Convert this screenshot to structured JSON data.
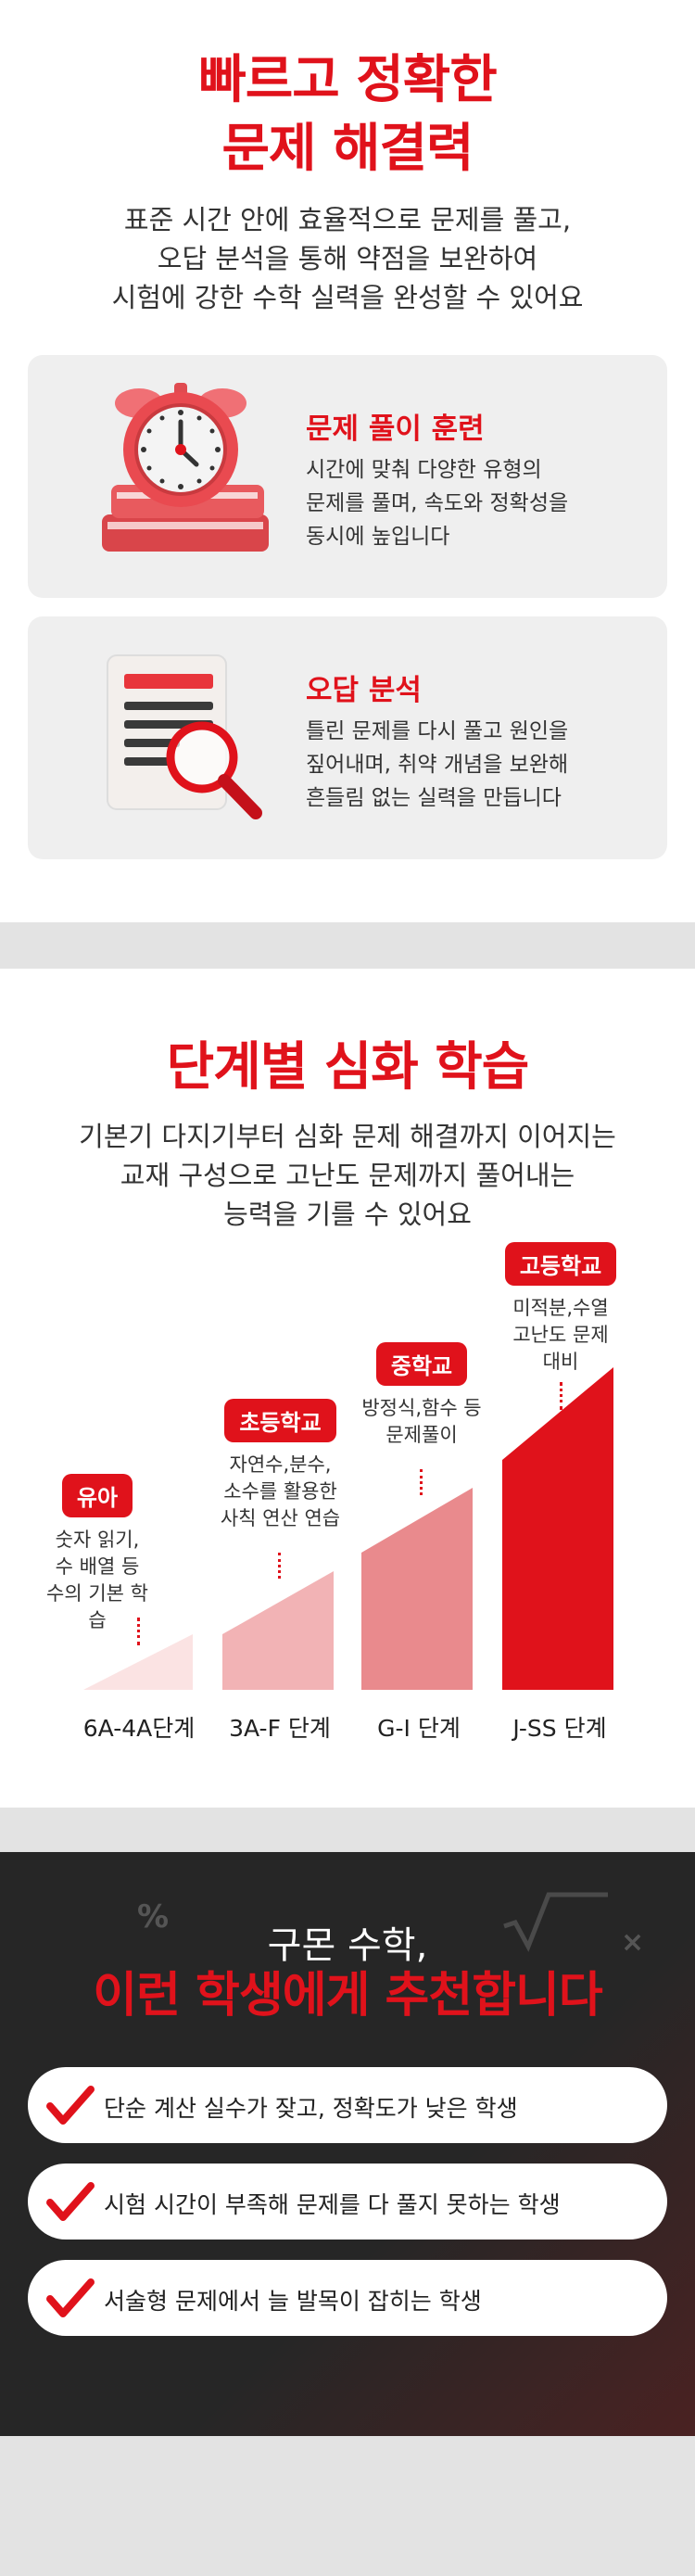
{
  "section1": {
    "title_line1": "빠르고 정확한",
    "title_line2": "문제 해결력",
    "desc_line1": "표준 시간 안에 효율적으로 문제를 풀고,",
    "desc_line2": "오답 분석을 통해 약점을 보완하여",
    "desc_line3": "시험에 강한 수학 실력을 완성할 수 있어요",
    "cards": [
      {
        "title": "문제 풀이 훈련",
        "line1": "시간에 맞춰 다양한 유형의",
        "line2": "문제를 풀며, 속도와 정확성을",
        "line3": "동시에 높입니다",
        "icon": "alarm-clock-on-books-icon"
      },
      {
        "title": "오답 분석",
        "line1": "틀린 문제를 다시 풀고 원인을",
        "line2": "짚어내며, 취약 개념을 보완해",
        "line3": "흔들림 없는 실력을 만듭니다",
        "icon": "document-magnifier-icon"
      }
    ]
  },
  "section2": {
    "title": "단계별 심화 학습",
    "desc_line1": "기본기 다지기부터 심화 문제 해결까지 이어지는",
    "desc_line2": "교재 구성으로 고난도 문제까지 풀어내는",
    "desc_line3": "능력을 기를 수 있어요",
    "stages": [
      {
        "badge": "유아",
        "d1": "숫자 읽기,",
        "d2": "수 배열 등",
        "d3": "수의 기본 학습",
        "label": "6A-4A단계"
      },
      {
        "badge": "초등학교",
        "d1": "자연수,분수,",
        "d2": "소수를 활용한",
        "d3": "사칙 연산 연습",
        "label": "3A-F 단계"
      },
      {
        "badge": "중학교",
        "d1": "방정식,함수 등",
        "d2": "문제풀이",
        "d3": "",
        "label": "G-I 단계"
      },
      {
        "badge": "고등학교",
        "d1": "미적분,수열",
        "d2": "고난도 문제",
        "d3": "대비",
        "label": "J-SS 단계"
      }
    ],
    "colors": [
      "#fbe3e3",
      "#f2b3b5",
      "#e98a8d",
      "#e0121b"
    ]
  },
  "section3": {
    "subtitle": "구몬 수학,",
    "title": "이런 학생에게 추천합니다",
    "items": [
      "단순 계산 실수가 잦고, 정확도가 낮은 학생",
      "시험 시간이 부족해 문제를 다 풀지 못하는 학생",
      "서술형 문제에서 늘 발목이 잡히는 학생"
    ],
    "accent": "#e0121b"
  }
}
